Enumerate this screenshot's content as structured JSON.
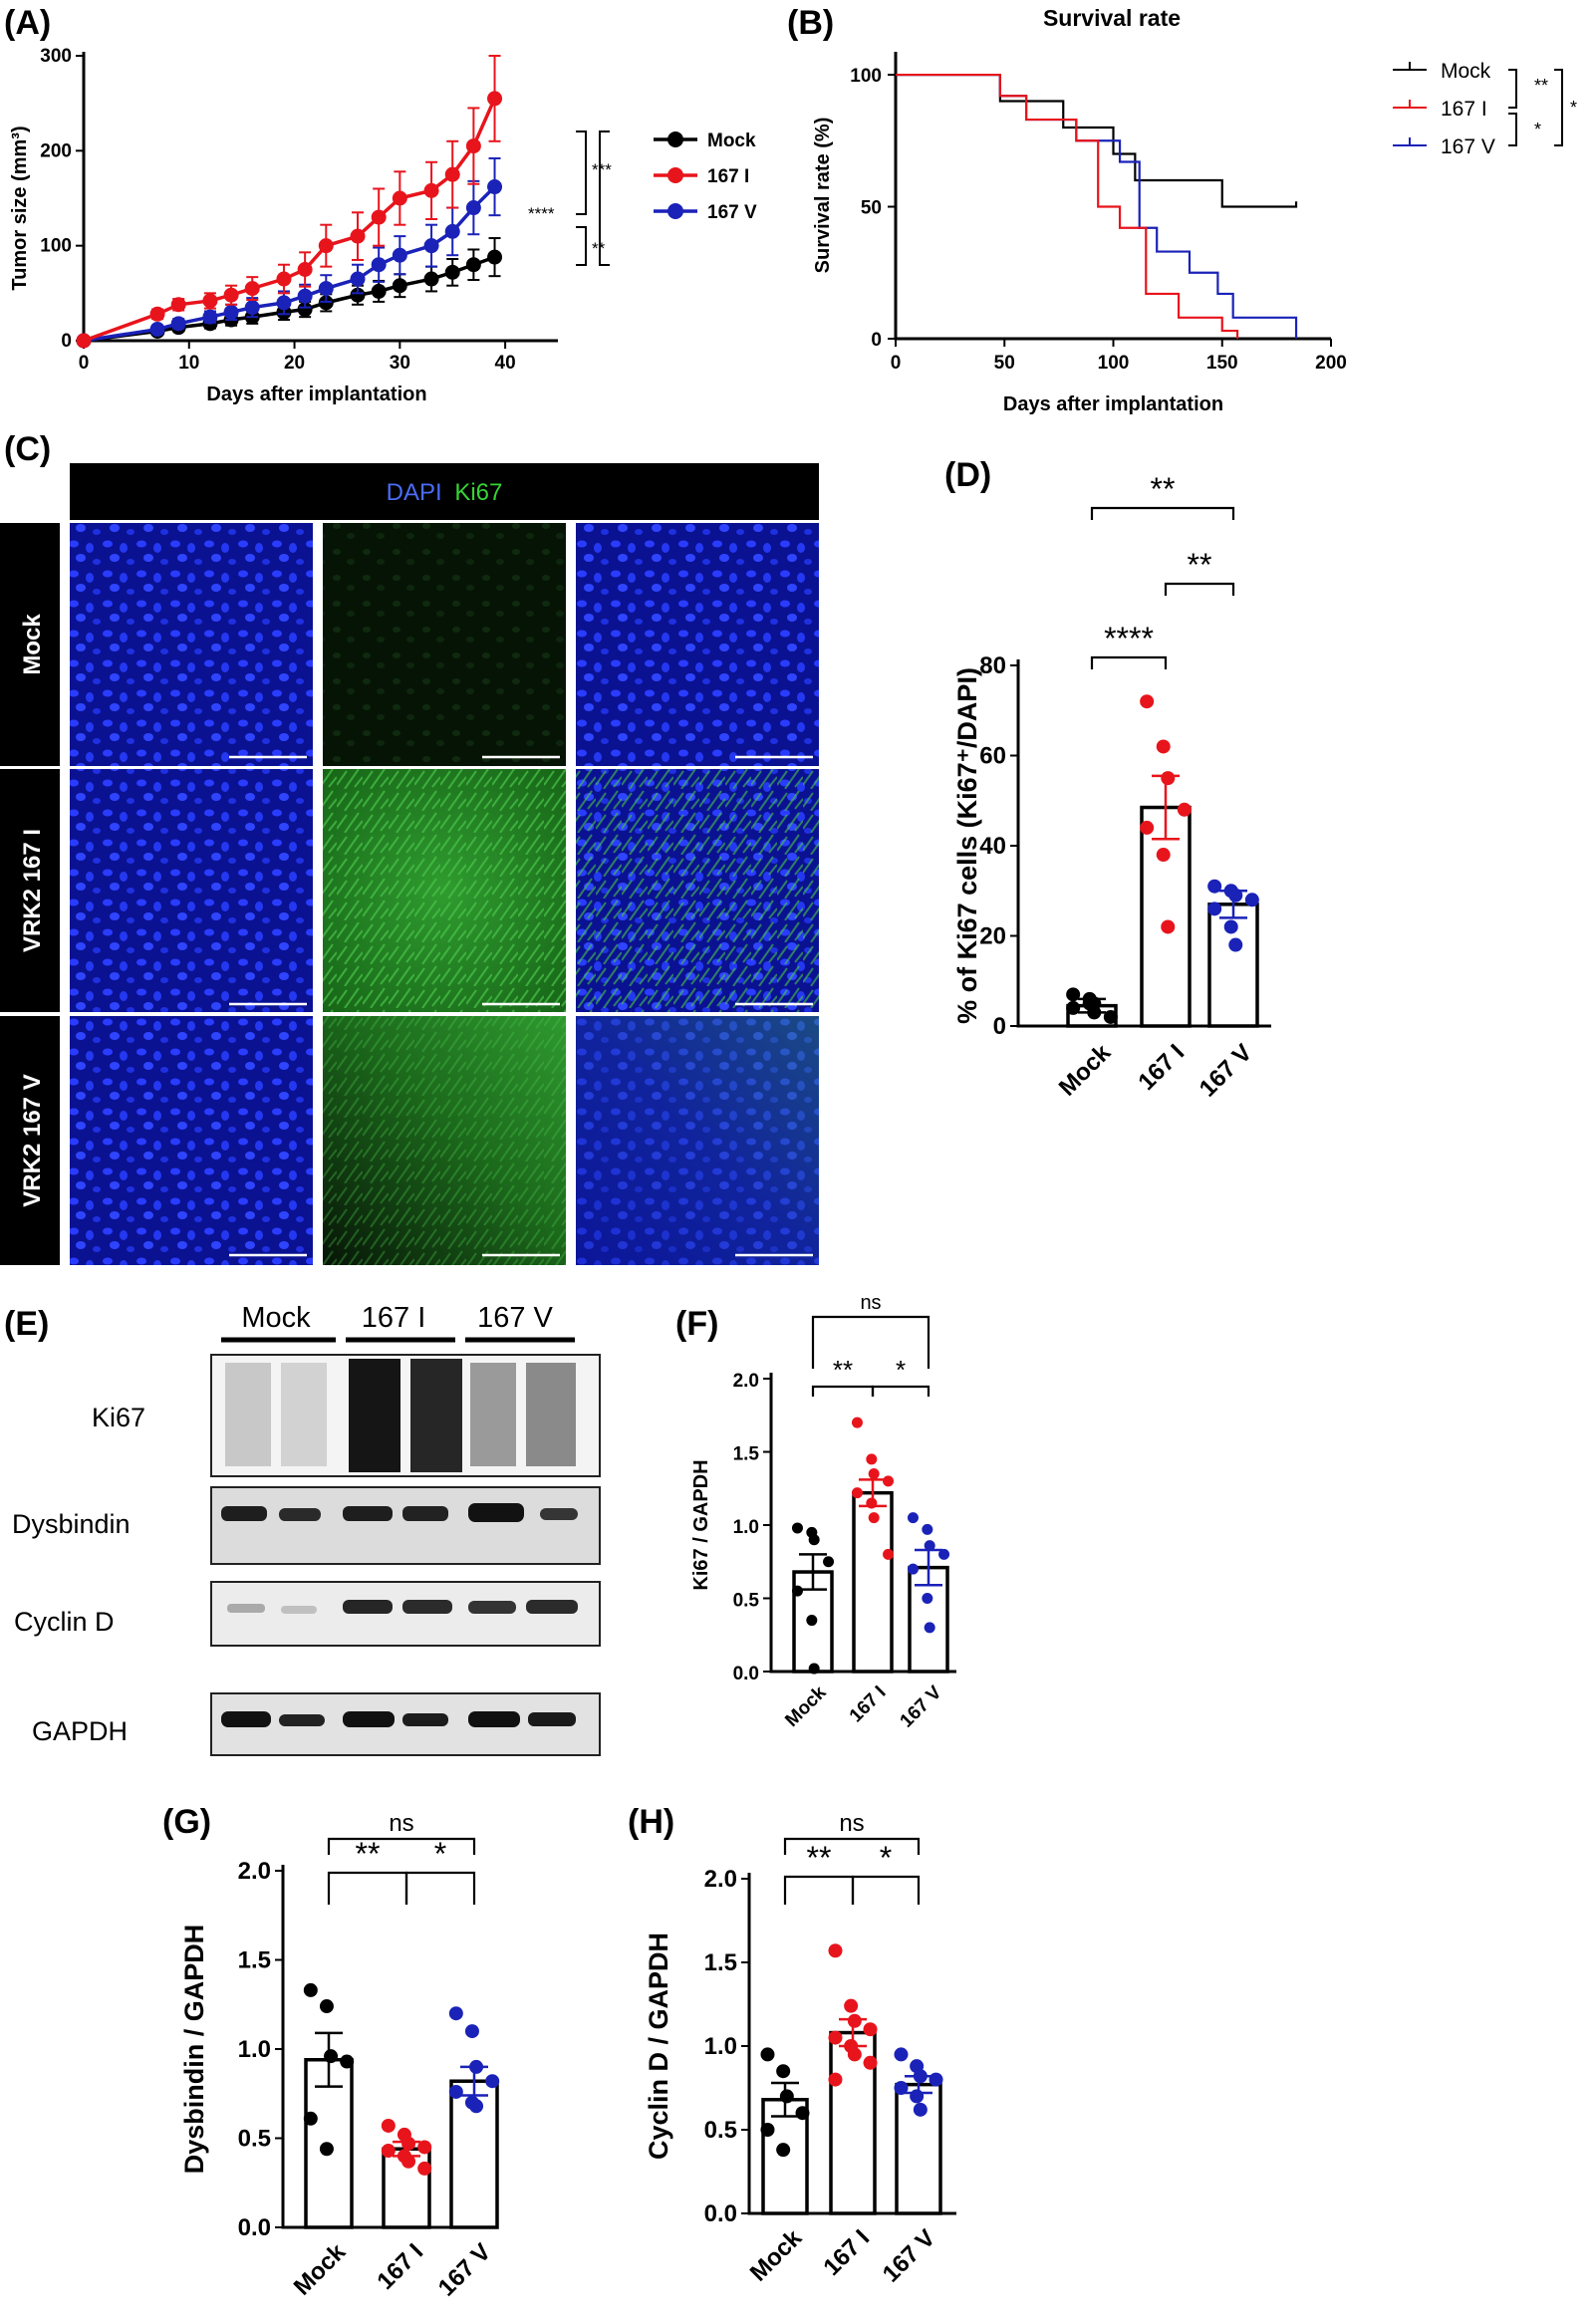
{
  "panels": {
    "A": "(A)",
    "B": "(B)",
    "C": "(C)",
    "D": "(D)",
    "E": "(E)",
    "F": "(F)",
    "G": "(G)",
    "H": "(H)"
  },
  "colors": {
    "mock": "#000000",
    "i167": "#e8141c",
    "v167": "#1a22b8"
  },
  "panel_c": {
    "header_dapi": "DAPI",
    "header_ki67": "Ki67",
    "rows": [
      "Mock",
      "VRK2 167 I",
      "VRK2 167 V"
    ]
  },
  "panel_e": {
    "groups": [
      "Mock",
      "167 I",
      "167 V"
    ],
    "proteins": [
      "Ki67",
      "Dysbindin",
      "Cyclin D",
      "GAPDH"
    ]
  },
  "chart_data": [
    {
      "id": "A",
      "type": "line",
      "xlabel": "Days after implantation",
      "ylabel": "Tumor size (mm³)",
      "xlim": [
        0,
        45
      ],
      "ylim": [
        0,
        300
      ],
      "xticks": [
        0,
        10,
        20,
        30,
        40
      ],
      "yticks": [
        0,
        100,
        200,
        300
      ],
      "x": [
        0,
        7,
        9,
        12,
        14,
        16,
        19,
        21,
        23,
        26,
        28,
        30,
        33,
        35,
        37,
        39
      ],
      "series": [
        {
          "name": "Mock",
          "values": [
            0,
            10,
            14,
            18,
            22,
            25,
            30,
            33,
            40,
            48,
            52,
            58,
            65,
            72,
            80,
            88
          ],
          "err": [
            0,
            3,
            4,
            5,
            6,
            7,
            8,
            8,
            9,
            10,
            11,
            12,
            13,
            14,
            16,
            20
          ]
        },
        {
          "name": "167 I",
          "values": [
            0,
            28,
            38,
            42,
            48,
            55,
            65,
            75,
            100,
            110,
            130,
            150,
            158,
            175,
            205,
            255
          ],
          "err": [
            0,
            5,
            6,
            8,
            10,
            12,
            15,
            18,
            22,
            25,
            30,
            28,
            30,
            35,
            40,
            45
          ]
        },
        {
          "name": "167 V",
          "values": [
            0,
            12,
            18,
            25,
            30,
            35,
            40,
            47,
            55,
            65,
            80,
            90,
            100,
            115,
            140,
            162
          ],
          "err": [
            0,
            4,
            5,
            6,
            8,
            10,
            12,
            12,
            14,
            15,
            18,
            20,
            22,
            25,
            28,
            30
          ]
        }
      ],
      "legend": [
        "Mock",
        "167 I",
        "167 V"
      ],
      "legend_position": "right",
      "significance": [
        "***",
        "****",
        "**"
      ]
    },
    {
      "id": "B",
      "type": "line",
      "title": "Survival rate",
      "xlabel": "Days after implantation",
      "ylabel": "Survival rate (%)",
      "xlim": [
        0,
        200
      ],
      "ylim": [
        0,
        100
      ],
      "xticks": [
        0,
        50,
        100,
        150,
        200
      ],
      "yticks": [
        0,
        50,
        100
      ],
      "series": [
        {
          "name": "Mock",
          "x": [
            0,
            48,
            48,
            77,
            77,
            100,
            100,
            110,
            110,
            150,
            150,
            184,
            184
          ],
          "values": [
            100,
            100,
            90,
            90,
            80,
            80,
            70,
            70,
            60,
            60,
            50,
            50,
            52
          ]
        },
        {
          "name": "167 I",
          "x": [
            0,
            48,
            48,
            60,
            60,
            83,
            83,
            93,
            93,
            103,
            103,
            115,
            115,
            130,
            130,
            150,
            150,
            157,
            157
          ],
          "values": [
            100,
            100,
            92,
            92,
            83,
            83,
            75,
            75,
            50,
            50,
            42,
            42,
            17,
            17,
            8,
            8,
            3,
            3,
            0
          ]
        },
        {
          "name": "167 V",
          "x": [
            0,
            48,
            48,
            60,
            60,
            83,
            83,
            103,
            103,
            112,
            112,
            120,
            120,
            135,
            135,
            148,
            148,
            155,
            155,
            184,
            184
          ],
          "values": [
            100,
            100,
            92,
            92,
            83,
            83,
            75,
            75,
            67,
            67,
            42,
            42,
            33,
            33,
            25,
            25,
            17,
            17,
            8,
            8,
            0
          ]
        }
      ],
      "legend": [
        "Mock",
        "167 I",
        "167 V"
      ],
      "legend_position": "right",
      "significance": [
        "**",
        "*",
        "*"
      ]
    },
    {
      "id": "D",
      "type": "bar",
      "categories": [
        "Mock",
        "167 I",
        "167 V"
      ],
      "values": [
        4.5,
        48.5,
        27
      ],
      "err": [
        1.5,
        7,
        3
      ],
      "points": [
        [
          7,
          5,
          3,
          2,
          4,
          6,
          5
        ],
        [
          72,
          62,
          55,
          48,
          44,
          38,
          22
        ],
        [
          31,
          30,
          29,
          28,
          26,
          22,
          18
        ]
      ],
      "ylabel": "% of Ki67 cells (Ki67⁺/DAPI)",
      "ylim": [
        0,
        80
      ],
      "yticks": [
        0,
        20,
        40,
        60,
        80
      ],
      "significance": [
        "**",
        "**",
        "****"
      ]
    },
    {
      "id": "F",
      "type": "bar",
      "categories": [
        "Mock",
        "167 I",
        "167 V"
      ],
      "values": [
        0.68,
        1.22,
        0.71
      ],
      "err": [
        0.12,
        0.09,
        0.12
      ],
      "points": [
        [
          0.98,
          0.95,
          0.9,
          0.75,
          0.55,
          0.35,
          0.02
        ],
        [
          1.7,
          1.45,
          1.35,
          1.3,
          1.22,
          1.15,
          1.05,
          0.8
        ],
        [
          1.05,
          0.97,
          0.86,
          0.8,
          0.7,
          0.5,
          0.3
        ]
      ],
      "ylabel": "Ki67 / GAPDH",
      "ylim": [
        0,
        2
      ],
      "yticks": [
        "0.0",
        "0.5",
        "1.0",
        "1.5",
        "2.0"
      ],
      "significance": [
        "ns",
        "**",
        "*"
      ]
    },
    {
      "id": "G",
      "type": "bar",
      "categories": [
        "Mock",
        "167 I",
        "167 V"
      ],
      "values": [
        0.94,
        0.44,
        0.82
      ],
      "err": [
        0.15,
        0.04,
        0.08
      ],
      "points": [
        [
          1.33,
          1.24,
          0.96,
          0.93,
          0.61,
          0.44
        ],
        [
          0.57,
          0.52,
          0.47,
          0.45,
          0.43,
          0.4,
          0.37,
          0.33
        ],
        [
          1.2,
          1.1,
          0.9,
          0.82,
          0.76,
          0.7,
          0.68
        ]
      ],
      "ylabel": "Dysbindin / GAPDH",
      "ylim": [
        0,
        2
      ],
      "yticks": [
        "0.0",
        "0.5",
        "1.0",
        "1.5",
        "2.0"
      ],
      "significance": [
        "ns",
        "**",
        "*"
      ]
    },
    {
      "id": "H",
      "type": "bar",
      "categories": [
        "Mock",
        "167 I",
        "167 V"
      ],
      "values": [
        0.68,
        1.08,
        0.77
      ],
      "err": [
        0.1,
        0.08,
        0.05
      ],
      "points": [
        [
          0.95,
          0.85,
          0.7,
          0.6,
          0.5,
          0.38
        ],
        [
          1.57,
          1.24,
          1.15,
          1.1,
          1.05,
          1.0,
          0.95,
          0.9,
          0.8
        ],
        [
          0.95,
          0.88,
          0.82,
          0.8,
          0.75,
          0.7,
          0.62
        ]
      ],
      "ylabel": "Cyclin D / GAPDH",
      "ylim": [
        0,
        2
      ],
      "yticks": [
        "0.0",
        "0.5",
        "1.0",
        "1.5",
        "2.0"
      ],
      "significance": [
        "ns",
        "**",
        "*"
      ]
    }
  ]
}
